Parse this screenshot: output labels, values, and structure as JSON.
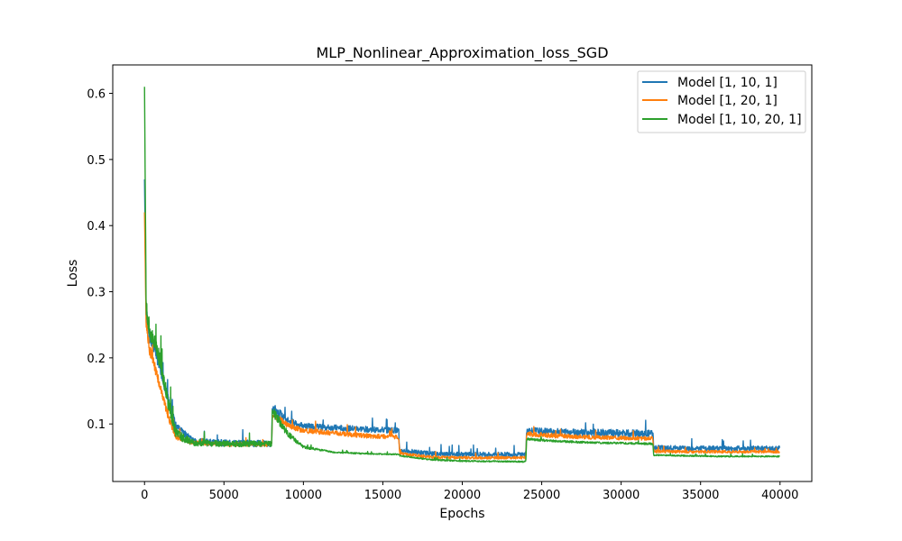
{
  "chart_data": {
    "type": "line",
    "title": "MLP_Nonlinear_Approximation_loss_SGD",
    "xlabel": "Epochs",
    "ylabel": "Loss",
    "xlim": [
      -2000,
      42000
    ],
    "ylim": [
      0.013,
      0.643
    ],
    "xticks": [
      0,
      5000,
      10000,
      15000,
      20000,
      25000,
      30000,
      35000,
      40000
    ],
    "yticks": [
      0.1,
      0.2,
      0.3,
      0.4,
      0.5,
      0.6
    ],
    "xtick_labels": [
      "0",
      "5000",
      "10000",
      "15000",
      "20000",
      "25000",
      "30000",
      "35000",
      "40000"
    ],
    "ytick_labels": [
      "0.1",
      "0.2",
      "0.3",
      "0.4",
      "0.5",
      "0.6"
    ],
    "grid": false,
    "legend_position": "top-right",
    "series": [
      {
        "name": "Model [1, 10, 1]",
        "color": "#1f77b4",
        "x": [
          0,
          100,
          300,
          600,
          1000,
          1500,
          2000,
          3000,
          4000,
          6000,
          8000,
          8050,
          9000,
          10000,
          12000,
          14000,
          16000,
          16050,
          18000,
          20000,
          24000,
          24050,
          26000,
          28000,
          30000,
          32000,
          32050,
          34000,
          36000,
          38000,
          40000
        ],
        "y": [
          0.47,
          0.27,
          0.235,
          0.215,
          0.185,
          0.135,
          0.095,
          0.075,
          0.072,
          0.071,
          0.07,
          0.125,
          0.105,
          0.097,
          0.094,
          0.092,
          0.09,
          0.06,
          0.055,
          0.054,
          0.054,
          0.09,
          0.088,
          0.087,
          0.086,
          0.085,
          0.064,
          0.063,
          0.063,
          0.063,
          0.063
        ],
        "band": [
          0.0,
          0.02,
          0.025,
          0.02,
          0.02,
          0.015,
          0.012,
          0.01,
          0.01,
          0.01,
          0.01,
          0.015,
          0.01,
          0.009,
          0.009,
          0.009,
          0.009,
          0.007,
          0.007,
          0.007,
          0.007,
          0.01,
          0.01,
          0.011,
          0.011,
          0.011,
          0.008,
          0.008,
          0.008,
          0.008,
          0.008
        ]
      },
      {
        "name": "Model [1, 20, 1]",
        "color": "#ff7f0e",
        "x": [
          0,
          100,
          300,
          600,
          1000,
          1500,
          2000,
          3000,
          4000,
          6000,
          8000,
          8050,
          9000,
          10000,
          12000,
          14000,
          16000,
          16050,
          18000,
          20000,
          24000,
          24050,
          26000,
          28000,
          30000,
          32000,
          32050,
          34000,
          36000,
          38000,
          40000
        ],
        "y": [
          0.42,
          0.25,
          0.215,
          0.19,
          0.155,
          0.11,
          0.08,
          0.072,
          0.07,
          0.069,
          0.069,
          0.115,
          0.098,
          0.09,
          0.086,
          0.082,
          0.08,
          0.055,
          0.05,
          0.049,
          0.049,
          0.085,
          0.082,
          0.08,
          0.079,
          0.078,
          0.059,
          0.058,
          0.058,
          0.058,
          0.058
        ],
        "band": [
          0.0,
          0.015,
          0.02,
          0.015,
          0.012,
          0.01,
          0.008,
          0.006,
          0.006,
          0.006,
          0.006,
          0.01,
          0.008,
          0.008,
          0.007,
          0.007,
          0.006,
          0.005,
          0.004,
          0.004,
          0.004,
          0.007,
          0.007,
          0.006,
          0.006,
          0.006,
          0.005,
          0.004,
          0.004,
          0.004,
          0.004
        ]
      },
      {
        "name": "Model [1, 10, 20, 1]",
        "color": "#2ca02c",
        "x": [
          0,
          100,
          300,
          600,
          1000,
          1500,
          2000,
          3000,
          4000,
          6000,
          8000,
          8050,
          9000,
          10000,
          12000,
          14000,
          16000,
          16050,
          18000,
          20000,
          24000,
          24050,
          26000,
          28000,
          30000,
          32000,
          32050,
          34000,
          36000,
          38000,
          40000
        ],
        "y": [
          0.61,
          0.28,
          0.245,
          0.225,
          0.195,
          0.13,
          0.085,
          0.072,
          0.071,
          0.07,
          0.07,
          0.12,
          0.085,
          0.065,
          0.057,
          0.055,
          0.054,
          0.052,
          0.046,
          0.044,
          0.043,
          0.077,
          0.074,
          0.072,
          0.071,
          0.07,
          0.053,
          0.052,
          0.051,
          0.051,
          0.051
        ],
        "band": [
          0.0,
          0.025,
          0.03,
          0.025,
          0.025,
          0.02,
          0.015,
          0.01,
          0.01,
          0.009,
          0.008,
          0.015,
          0.01,
          0.004,
          0.002,
          0.002,
          0.002,
          0.002,
          0.002,
          0.002,
          0.002,
          0.004,
          0.003,
          0.003,
          0.003,
          0.003,
          0.002,
          0.002,
          0.002,
          0.002,
          0.002
        ]
      }
    ]
  }
}
